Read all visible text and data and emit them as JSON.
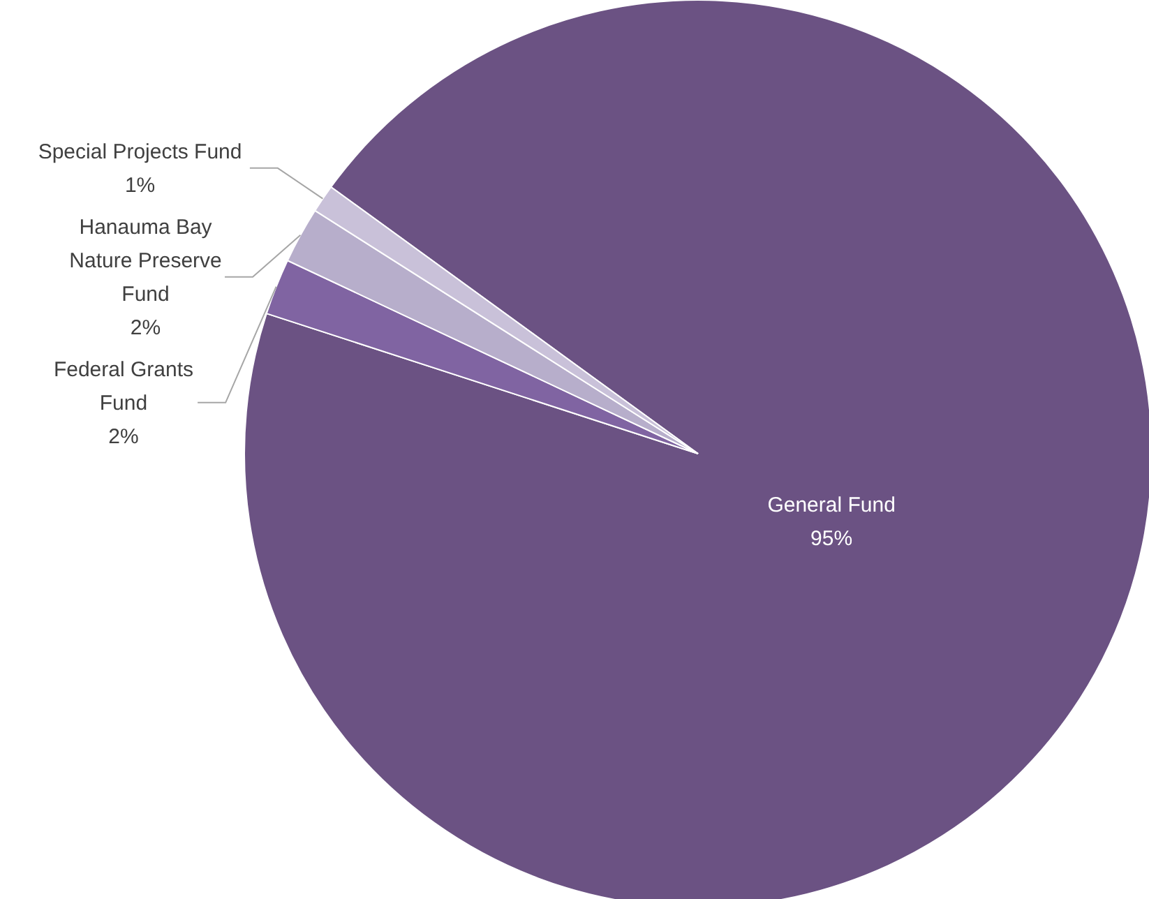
{
  "chart_data": {
    "type": "pie",
    "categories": [
      "General Fund",
      "Federal Grants Fund",
      "Hanauma Bay Nature Preserve Fund",
      "Special Projects Fund"
    ],
    "values": [
      95,
      2,
      2,
      1
    ],
    "colors": [
      "#6b5283",
      "#8064a2",
      "#b7aecb",
      "#c9c1d9"
    ],
    "value_labels": [
      "95%",
      "2%",
      "2%",
      "1%"
    ]
  }
}
